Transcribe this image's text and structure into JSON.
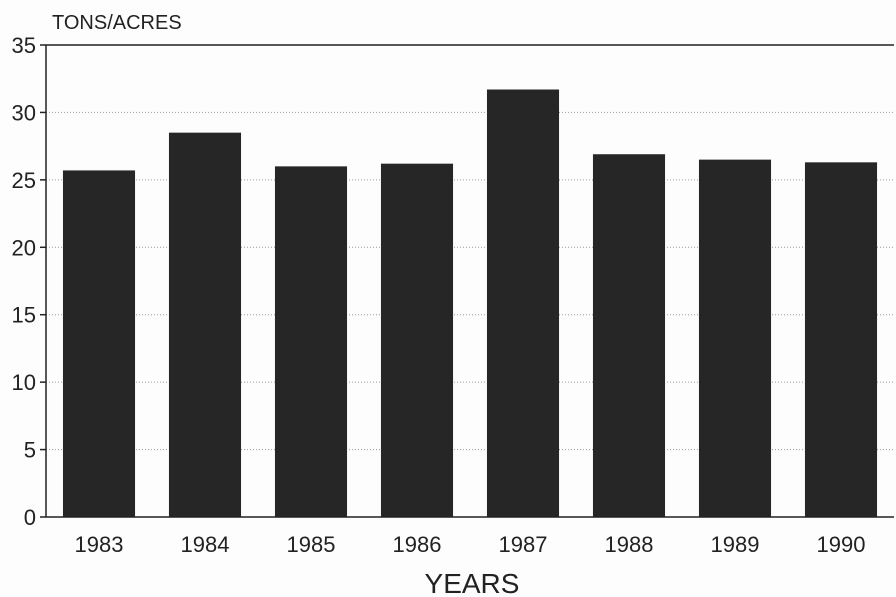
{
  "chart_data": {
    "type": "bar",
    "title": "",
    "ylabel": "TONS/ACRES",
    "xlabel": "YEARS",
    "categories": [
      "1983",
      "1984",
      "1985",
      "1986",
      "1987",
      "1988",
      "1989",
      "1990"
    ],
    "values": [
      25.7,
      28.5,
      26.0,
      26.2,
      31.7,
      26.9,
      26.5,
      26.3
    ],
    "ylim": [
      0,
      35
    ],
    "yticks": [
      0,
      5,
      10,
      15,
      20,
      25,
      30,
      35
    ],
    "grid": true,
    "legend": "none",
    "bar_color": "#262626"
  }
}
